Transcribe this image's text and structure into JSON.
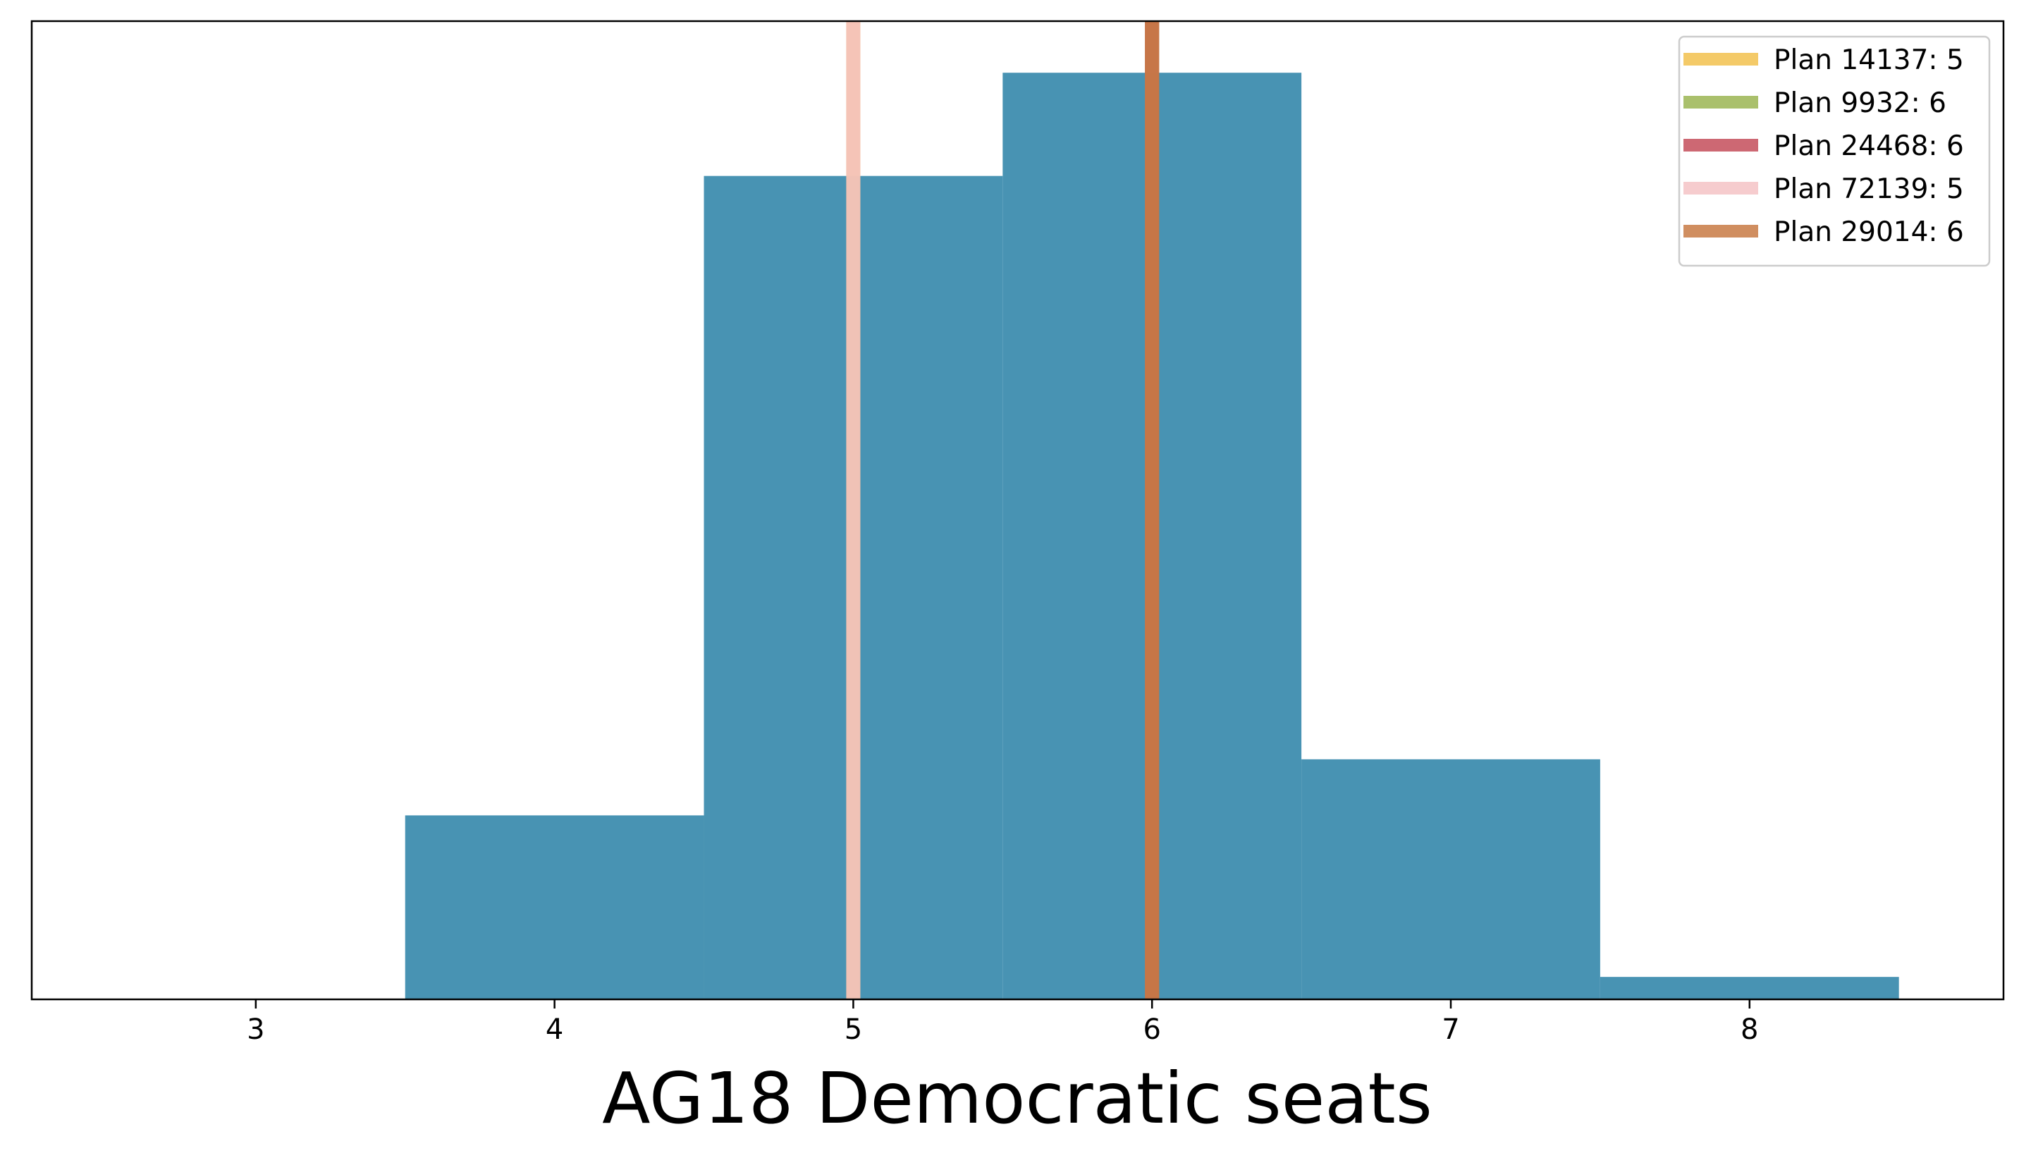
{
  "chart_data": {
    "type": "bar",
    "xlabel": "AG18 Democratic seats",
    "ylabel": "",
    "title": "",
    "xlim": [
      2.25,
      8.85
    ],
    "ylim": [
      0,
      0.436
    ],
    "x_ticks": [
      3,
      4,
      5,
      6,
      7,
      8
    ],
    "y_ticks_shown": false,
    "grid": false,
    "bar_color": "#4893b3",
    "bins": [
      {
        "x0": 3.5,
        "x1": 4.5,
        "value": 0.082
      },
      {
        "x0": 4.5,
        "x1": 5.5,
        "value": 0.367
      },
      {
        "x0": 5.5,
        "x1": 6.5,
        "value": 0.413
      },
      {
        "x0": 6.5,
        "x1": 7.5,
        "value": 0.107
      },
      {
        "x0": 7.5,
        "x1": 8.5,
        "value": 0.01
      }
    ],
    "reference_lines": [
      {
        "label": "Plan 14137: 5",
        "x": 5,
        "color": "#f2c14e",
        "alpha": 0.85
      },
      {
        "label": "Plan 9932: 6",
        "x": 6,
        "color": "#9bb552",
        "alpha": 0.85
      },
      {
        "label": "Plan 24468: 6",
        "x": 6,
        "color": "#c44e5a",
        "alpha": 0.85
      },
      {
        "label": "Plan 72139: 5",
        "x": 5,
        "color": "#f4c3c5",
        "alpha": 0.85
      },
      {
        "label": "Plan 29014: 6",
        "x": 6,
        "color": "#c87a44",
        "alpha": 0.85
      }
    ],
    "legend_position": "top-right"
  }
}
